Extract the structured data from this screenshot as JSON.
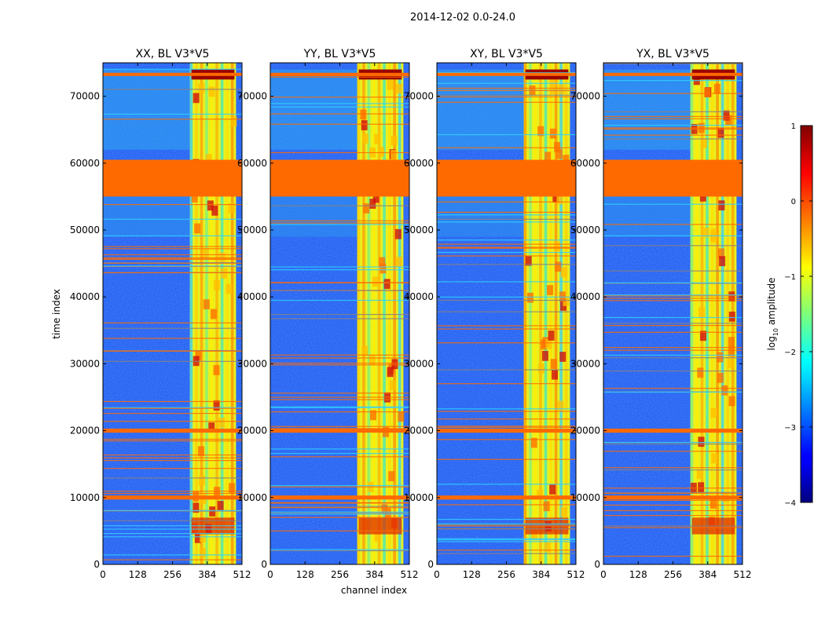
{
  "suptitle": "2014-12-02 0.0-24.0",
  "xlabel": "channel index",
  "ylabel": "time index",
  "colorbar": {
    "label_main": "log",
    "label_sub": "10",
    "label_tail": " amplitude",
    "range": [
      -4,
      1
    ],
    "ticks": [
      "1",
      "0",
      "−1",
      "−2",
      "−3",
      "−4"
    ],
    "colormap": "jet"
  },
  "chart_data": [
    {
      "type": "heatmap",
      "title": "XX, BL V3*V5",
      "x_range": [
        0,
        512
      ],
      "y_range": [
        0,
        75000
      ],
      "x_ticks": [
        0,
        128,
        256,
        384,
        512
      ],
      "y_ticks": [
        0,
        10000,
        20000,
        30000,
        40000,
        50000,
        60000,
        70000
      ],
      "high_channels": [
        320,
        490
      ],
      "flagged_time_ranges": [
        [
          55000,
          60500
        ],
        [
          19700,
          20300
        ],
        [
          9700,
          10300
        ]
      ]
    },
    {
      "type": "heatmap",
      "title": "YY, BL V3*V5",
      "x_range": [
        0,
        512
      ],
      "y_range": [
        0,
        75000
      ],
      "x_ticks": [
        0,
        128,
        256,
        384,
        512
      ],
      "y_ticks": [
        0,
        10000,
        20000,
        30000,
        40000,
        50000,
        60000,
        70000
      ],
      "high_channels": [
        320,
        490
      ],
      "flagged_time_ranges": [
        [
          55000,
          60500
        ],
        [
          19700,
          20300
        ],
        [
          9700,
          10300
        ]
      ]
    },
    {
      "type": "heatmap",
      "title": "XY, BL V3*V5",
      "x_range": [
        0,
        512
      ],
      "y_range": [
        0,
        75000
      ],
      "x_ticks": [
        0,
        128,
        256,
        384,
        512
      ],
      "y_ticks": [
        0,
        10000,
        20000,
        30000,
        40000,
        50000,
        60000,
        70000
      ],
      "high_channels": [
        320,
        490
      ],
      "flagged_time_ranges": [
        [
          55000,
          60500
        ],
        [
          19700,
          20300
        ],
        [
          9700,
          10300
        ]
      ]
    },
    {
      "type": "heatmap",
      "title": "YX, BL V3*V5",
      "x_range": [
        0,
        512
      ],
      "y_range": [
        0,
        75000
      ],
      "x_ticks": [
        0,
        128,
        256,
        384,
        512
      ],
      "y_ticks": [
        0,
        10000,
        20000,
        30000,
        40000,
        50000,
        60000,
        70000
      ],
      "high_channels": [
        320,
        490
      ],
      "flagged_time_ranges": [
        [
          55000,
          60500
        ],
        [
          19700,
          20300
        ],
        [
          9700,
          10300
        ]
      ]
    }
  ]
}
